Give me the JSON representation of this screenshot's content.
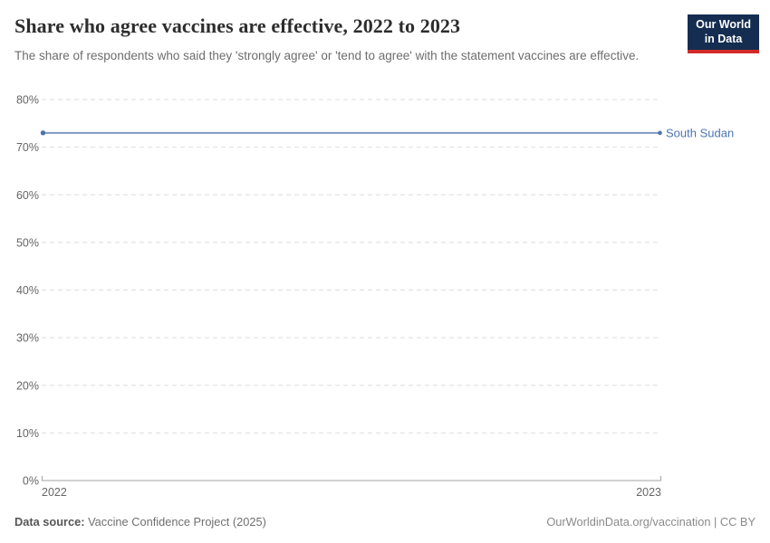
{
  "header": {
    "title": "Share who agree vaccines are effective, 2022 to 2023",
    "subtitle": "The share of respondents who said they 'strongly agree' or 'tend to agree' with the statement vaccines are effective.",
    "logo": {
      "line1": "Our World",
      "line2": "in Data",
      "bg_color": "#142d50",
      "bar_color": "#d12a28"
    }
  },
  "chart_data": {
    "type": "line",
    "title": "Share who agree vaccines are effective, 2022 to 2023",
    "x": [
      2022,
      2023
    ],
    "xtick_labels": [
      "2022",
      "2023"
    ],
    "series": [
      {
        "name": "South Sudan",
        "values": [
          73,
          73
        ],
        "color": "#7f9ac1",
        "dot_color": "#4f72a8",
        "label_color": "#4d74b2"
      }
    ],
    "ylim": [
      0,
      80
    ],
    "yticks": [
      0,
      10,
      20,
      30,
      40,
      50,
      60,
      70,
      80
    ],
    "ytick_suffix": "%",
    "grid": "dashed-horizontal",
    "gridline_color": "#dedede",
    "axis_color": "#a3a3a3",
    "legend_position": "end-of-line"
  },
  "footer": {
    "source_label": "Data source:",
    "source_value": "Vaccine Confidence Project (2025)",
    "attribution": "OurWorldinData.org/vaccination | CC BY"
  }
}
